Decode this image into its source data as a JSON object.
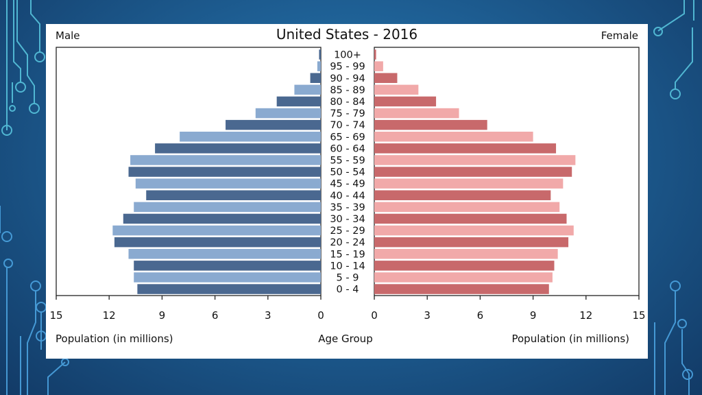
{
  "chart_data": {
    "type": "bar",
    "title": "United States - 2016",
    "left_label": "Male",
    "right_label": "Female",
    "xlabel_left": "Population (in millions)",
    "xlabel_center": "Age Group",
    "xlabel_right": "Population (in millions)",
    "xlim": [
      0,
      15
    ],
    "xticks": [
      "0",
      "3",
      "6",
      "9",
      "12",
      "15"
    ],
    "categories": [
      "100+",
      "95 - 99",
      "90 - 94",
      "85 - 89",
      "80 - 84",
      "75 - 79",
      "70 - 74",
      "65 - 69",
      "60 - 64",
      "55 - 59",
      "50 - 54",
      "45 - 49",
      "40 - 44",
      "35 - 39",
      "30 - 34",
      "25 - 29",
      "20 - 24",
      "15 - 19",
      "10 - 14",
      "5 - 9",
      "0 - 4"
    ],
    "series": [
      {
        "name": "Male",
        "values": [
          0.1,
          0.2,
          0.6,
          1.5,
          2.5,
          3.7,
          5.4,
          8.0,
          9.4,
          10.8,
          10.9,
          10.5,
          9.9,
          10.6,
          11.2,
          11.8,
          11.7,
          10.9,
          10.6,
          10.6,
          10.4
        ]
      },
      {
        "name": "Female",
        "values": [
          0.1,
          0.5,
          1.3,
          2.5,
          3.5,
          4.8,
          6.4,
          9.0,
          10.3,
          11.4,
          11.2,
          10.7,
          10.0,
          10.5,
          10.9,
          11.3,
          11.0,
          10.4,
          10.2,
          10.1,
          9.9
        ]
      }
    ],
    "colors": {
      "male_dark": "#4a6890",
      "male_light": "#8aaad0",
      "female_dark": "#c8696b",
      "female_light": "#f1a9a9"
    },
    "grid": false
  }
}
